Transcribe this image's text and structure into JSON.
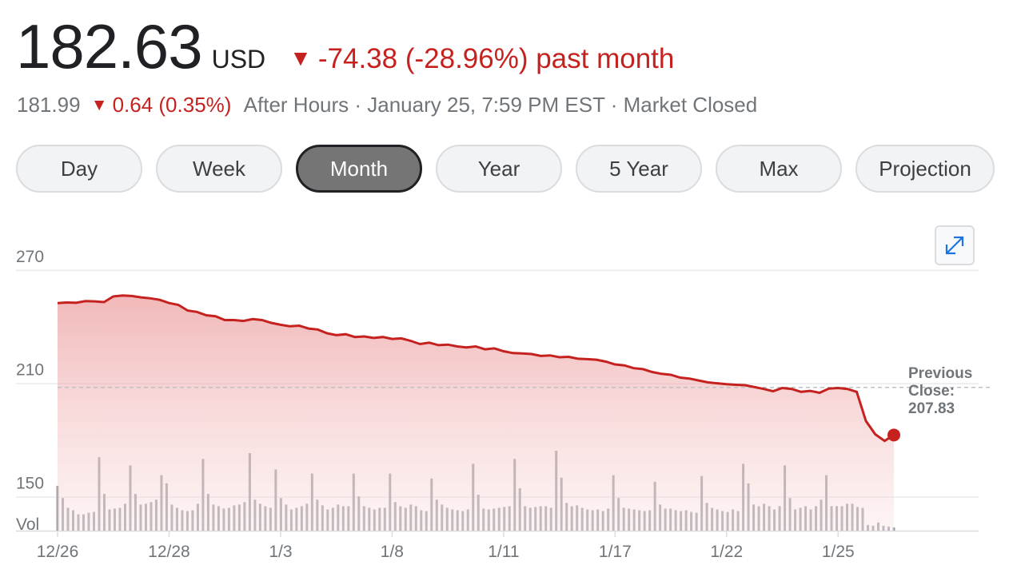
{
  "quote": {
    "price": "182.63",
    "currency": "USD",
    "change_arrow": "▼",
    "change": "-74.38 (-28.96%) past month",
    "after_hours_price": "181.99",
    "after_hours_change": "0.64 (0.35%)",
    "after_hours_info": "After Hours · January 25, 7:59 PM EST · Market Closed"
  },
  "tabs": [
    {
      "label": "Day",
      "active": false
    },
    {
      "label": "Week",
      "active": false
    },
    {
      "label": "Month",
      "active": true
    },
    {
      "label": "Year",
      "active": false
    },
    {
      "label": "5 Year",
      "active": false
    },
    {
      "label": "Max",
      "active": false
    },
    {
      "label": "Projection",
      "active": false
    }
  ],
  "icons": {
    "expand": "expand-icon"
  },
  "colors": {
    "line": "#c5221f",
    "down": "#c5221f",
    "volume": "#9aa0a6",
    "active_tab": "#757575"
  },
  "chart_data": {
    "type": "area",
    "x_ticks": [
      "12/26",
      "12/28",
      "1/3",
      "1/8",
      "1/11",
      "1/17",
      "1/22",
      "1/25"
    ],
    "y_ticks": [
      270,
      210,
      150
    ],
    "ylim": [
      132,
      286
    ],
    "volume_label": "Vol",
    "previous_close": {
      "label": "Previous Close:",
      "value": 207.83
    },
    "last_price": 182.63,
    "grid": true,
    "series": [
      {
        "values": [
          252.5,
          252.8,
          252.6,
          253.5,
          253.4,
          253.0,
          256.0,
          256.5,
          256.2,
          255.5,
          255.0,
          254.2,
          252.5,
          251.5,
          248.5,
          247.8,
          246.0,
          245.5,
          243.5,
          243.5,
          243.0,
          244.0,
          243.5,
          242.0,
          241.0,
          240.2,
          240.5,
          239.0,
          238.5,
          236.5,
          235.5,
          236.0,
          234.5,
          234.8,
          234.0,
          234.5,
          233.5,
          233.8,
          232.5,
          230.8,
          231.5,
          230.2,
          230.5,
          229.5,
          229.0,
          229.5,
          228.0,
          228.5,
          227.0,
          226.0,
          225.8,
          225.5,
          224.5,
          224.8,
          223.8,
          224.0,
          223.0,
          222.8,
          222.5,
          221.5,
          220.0,
          219.5,
          218.0,
          217.5,
          216.0,
          215.0,
          214.5,
          213.0,
          212.5,
          211.5,
          210.5,
          210.0,
          209.5,
          209.2,
          209.0,
          208.0,
          207.0,
          205.8,
          207.5,
          207.0,
          205.5,
          206.0,
          205.0,
          207.2,
          207.5,
          207.0,
          205.5,
          190.0,
          183.0,
          179.5,
          182.63
        ]
      }
    ],
    "volume": [
      55,
      40,
      28,
      25,
      20,
      20,
      22,
      23,
      90,
      45,
      26,
      27,
      28,
      33,
      80,
      45,
      32,
      33,
      35,
      38,
      68,
      58,
      32,
      28,
      25,
      24,
      25,
      33,
      88,
      45,
      32,
      30,
      27,
      28,
      31,
      32,
      35,
      95,
      38,
      33,
      30,
      28,
      75,
      40,
      32,
      26,
      28,
      30,
      33,
      70,
      38,
      31,
      26,
      28,
      32,
      30,
      30,
      70,
      42,
      30,
      28,
      26,
      28,
      28,
      70,
      35,
      30,
      28,
      32,
      30,
      25,
      24,
      64,
      38,
      32,
      28,
      26,
      25,
      24,
      26,
      82,
      44,
      27,
      26,
      27,
      28,
      29,
      30,
      88,
      52,
      30,
      28,
      29,
      30,
      30,
      28,
      98,
      65,
      34,
      30,
      31,
      28,
      26,
      25,
      26,
      24,
      27,
      68,
      40,
      28,
      27,
      26,
      25,
      24,
      25,
      60,
      32,
      27,
      27,
      25,
      24,
      25,
      23,
      22,
      67,
      34,
      28,
      26,
      24,
      23,
      26,
      24,
      82,
      58,
      32,
      30,
      33,
      30,
      26,
      30,
      80,
      40,
      26,
      28,
      30,
      26,
      30,
      38,
      68,
      30,
      30,
      30,
      33,
      33,
      29,
      28,
      7,
      6,
      10,
      6,
      5,
      4
    ]
  }
}
